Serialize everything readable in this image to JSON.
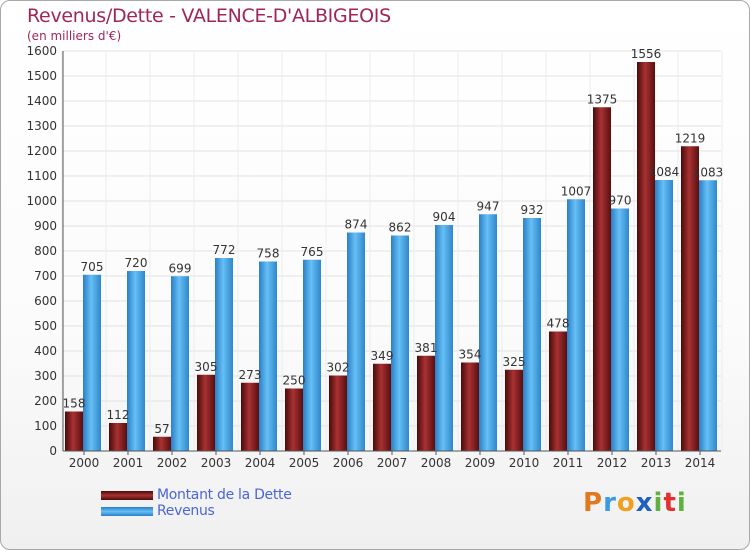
{
  "chart_data": {
    "type": "bar",
    "title": "Revenus/Dette - VALENCE-D'ALBIGEOIS",
    "subtitle": "(en milliers d'€)",
    "categories": [
      "2000",
      "2001",
      "2002",
      "2003",
      "2004",
      "2005",
      "2006",
      "2007",
      "2008",
      "2009",
      "2010",
      "2011",
      "2012",
      "2013",
      "2014"
    ],
    "series": [
      {
        "name": "Montant de la Dette",
        "color": "#8b1f1f",
        "values": [
          158,
          112,
          57,
          305,
          273,
          250,
          302,
          349,
          381,
          354,
          325,
          478,
          1375,
          1556,
          1219
        ]
      },
      {
        "name": "Revenus",
        "color": "#3a9be0",
        "values": [
          705,
          720,
          699,
          772,
          758,
          765,
          874,
          862,
          904,
          947,
          932,
          1007,
          970,
          1084,
          1083
        ]
      }
    ],
    "ylim": [
      0,
      1600
    ],
    "yticks": [
      0,
      100,
      200,
      300,
      400,
      500,
      600,
      700,
      800,
      900,
      1000,
      1100,
      1200,
      1300,
      1400,
      1500,
      1600
    ],
    "grid": true,
    "legend_position": "bottom-left"
  },
  "logo": {
    "text": "Proxiti",
    "letters": [
      "P",
      "r",
      "o",
      "x",
      "i",
      "t",
      "i"
    ],
    "colors": [
      "#e07820",
      "#3a9be0",
      "#f0a020",
      "#2060c0",
      "#60b040",
      "#e03030",
      "#60b040"
    ]
  }
}
